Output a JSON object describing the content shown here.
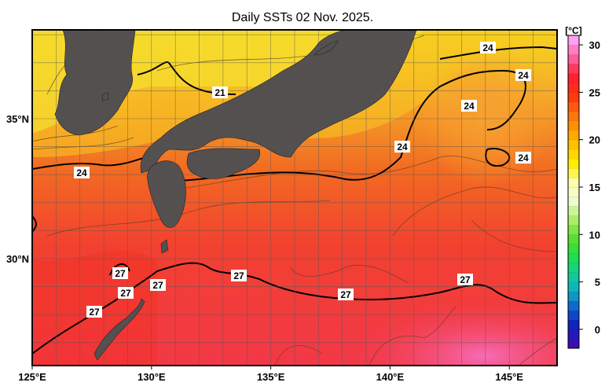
{
  "title": "Daily SSTs 02 Nov. 2025.",
  "map": {
    "region": "Japan and surrounding seas",
    "lon_range": [
      125,
      147
    ],
    "lat_range": [
      26.2,
      38.2
    ],
    "x_ticks": [
      "125°E",
      "130°E",
      "135°E",
      "140°E",
      "145°E"
    ],
    "y_ticks": [
      "35°N",
      "30°N"
    ],
    "land_color": "#555050",
    "grid": true,
    "contour_labels": [
      "24",
      "24",
      "24",
      "24",
      "24",
      "24",
      "21",
      "27",
      "27",
      "27",
      "27",
      "27",
      "27",
      "27"
    ]
  },
  "colorbar": {
    "unit": "[°C]",
    "ticks": [
      "30",
      "25",
      "20",
      "15",
      "10",
      "5",
      "0"
    ],
    "range": [
      -2,
      31
    ],
    "colors": [
      "#3a10b0",
      "#1020c0",
      "#1060d0",
      "#10b0c0",
      "#10d090",
      "#20e040",
      "#60e030",
      "#b0f070",
      "#f0fcd0",
      "#fffcb0",
      "#fff000",
      "#ffc800",
      "#ff9a00",
      "#ff6a10",
      "#ff3010",
      "#ff2030",
      "#ff60a0",
      "#ffa0f0"
    ]
  }
}
